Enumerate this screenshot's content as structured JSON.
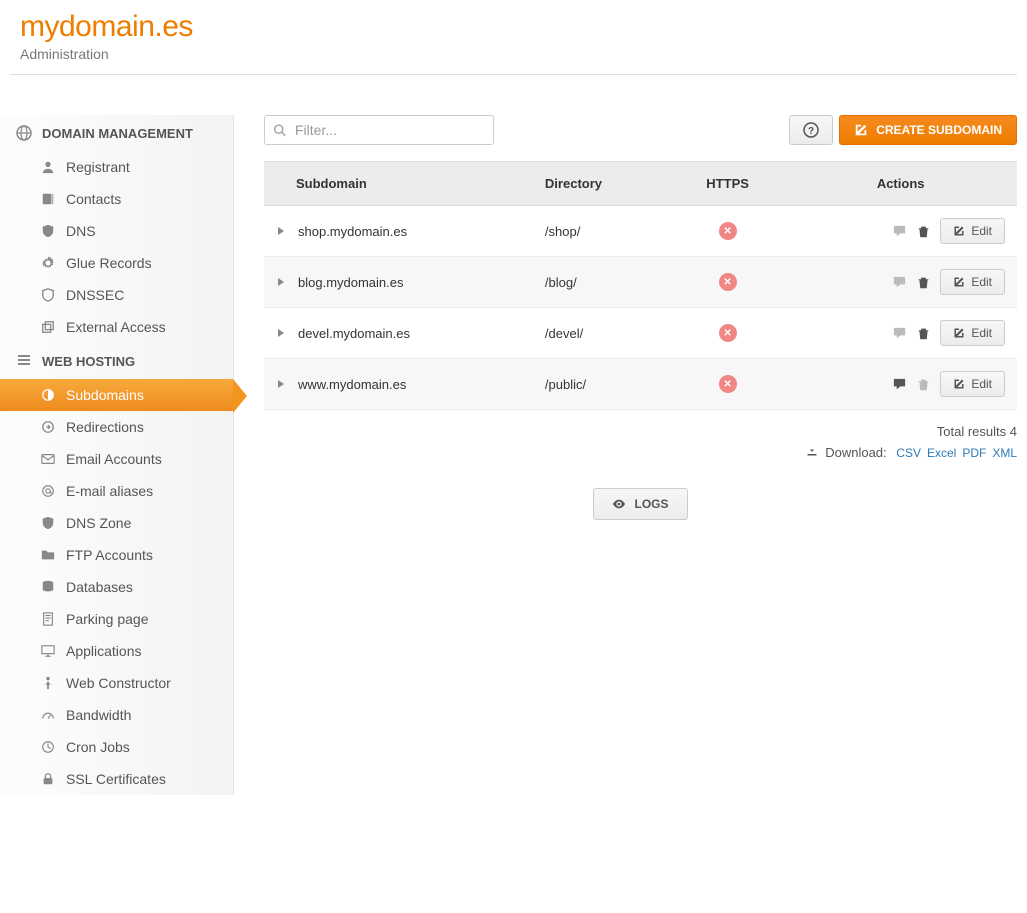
{
  "header": {
    "title": "mydomain.es",
    "subtitle": "Administration"
  },
  "sidebar": {
    "section1": {
      "title": "DOMAIN MANAGEMENT"
    },
    "section2": {
      "title": "WEB HOSTING"
    },
    "domain_items": [
      {
        "label": "Registrant",
        "icon": "user"
      },
      {
        "label": "Contacts",
        "icon": "book"
      },
      {
        "label": "DNS",
        "icon": "shield"
      },
      {
        "label": "Glue Records",
        "icon": "gear"
      },
      {
        "label": "DNSSEC",
        "icon": "shield2"
      },
      {
        "label": "External Access",
        "icon": "external"
      }
    ],
    "hosting_items": [
      {
        "label": "Subdomains",
        "icon": "contrast",
        "active": true
      },
      {
        "label": "Redirections",
        "icon": "redirect"
      },
      {
        "label": "Email Accounts",
        "icon": "envelope"
      },
      {
        "label": "E-mail aliases",
        "icon": "at"
      },
      {
        "label": "DNS Zone",
        "icon": "shield"
      },
      {
        "label": "FTP Accounts",
        "icon": "folder"
      },
      {
        "label": "Databases",
        "icon": "database"
      },
      {
        "label": "Parking page",
        "icon": "page"
      },
      {
        "label": "Applications",
        "icon": "monitor"
      },
      {
        "label": "Web Constructor",
        "icon": "person"
      },
      {
        "label": "Bandwidth",
        "icon": "gauge"
      },
      {
        "label": "Cron Jobs",
        "icon": "clock"
      },
      {
        "label": "SSL Certificates",
        "icon": "lock"
      }
    ]
  },
  "toolbar": {
    "filter_placeholder": "Filter...",
    "create_label": "CREATE SUBDOMAIN"
  },
  "table": {
    "columns": [
      "Subdomain",
      "Directory",
      "HTTPS",
      "Actions"
    ],
    "rows": [
      {
        "subdomain": "shop.mydomain.es",
        "directory": "/shop/",
        "https": false,
        "comment_active": false
      },
      {
        "subdomain": "blog.mydomain.es",
        "directory": "/blog/",
        "https": false,
        "comment_active": false
      },
      {
        "subdomain": "devel.mydomain.es",
        "directory": "/devel/",
        "https": false,
        "comment_active": false
      },
      {
        "subdomain": "www.mydomain.es",
        "directory": "/public/",
        "https": false,
        "comment_active": true
      }
    ],
    "edit_label": "Edit"
  },
  "footer": {
    "total_label": "Total results",
    "total_count": "4",
    "download_label": "Download:",
    "formats": [
      "CSV",
      "Excel",
      "PDF",
      "XML"
    ]
  },
  "logs": {
    "label": "LOGS"
  }
}
